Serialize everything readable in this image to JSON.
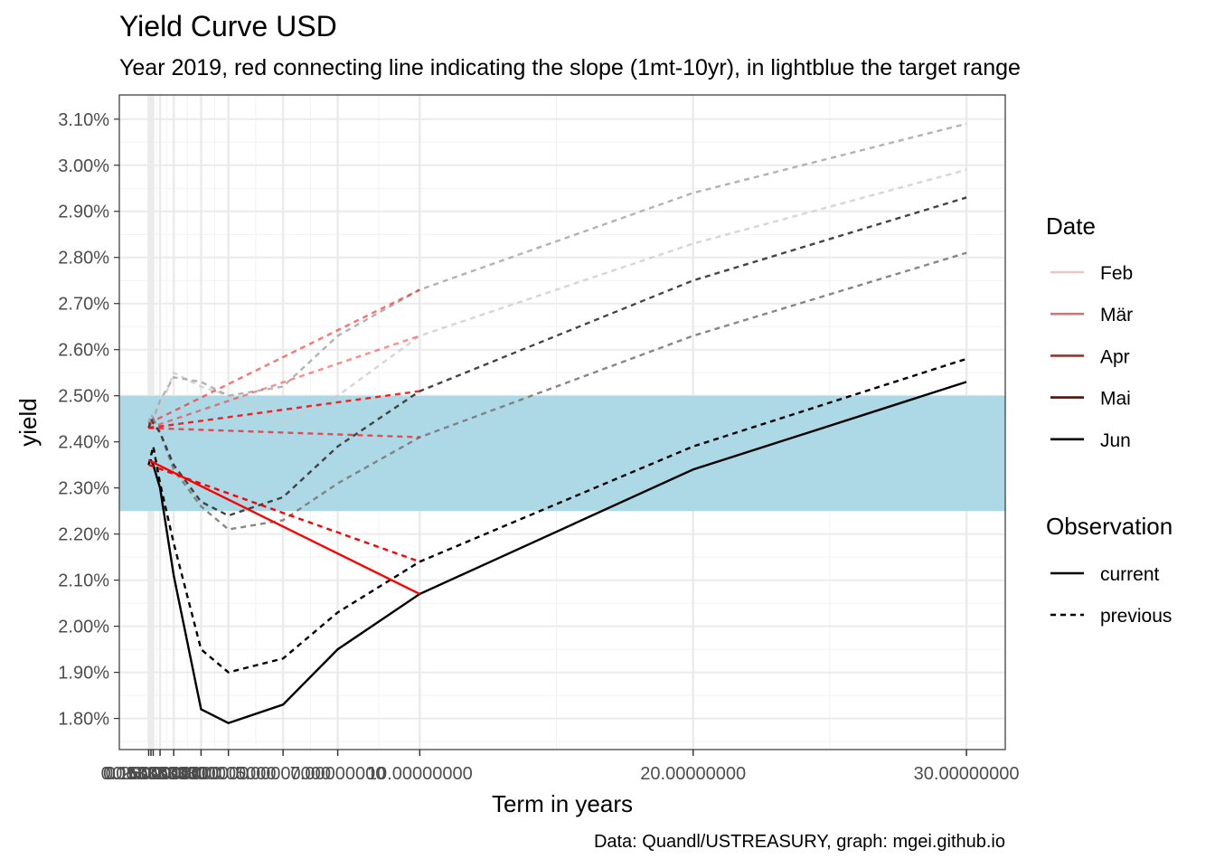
{
  "chart_data": {
    "type": "line",
    "title": "Yield Curve USD",
    "subtitle": "Year 2019, red connecting line indicating the slope (1mt-10yr), in lightblue the target range",
    "xlabel": "Term in years",
    "ylabel": "yield",
    "caption": "Data: Quandl/USTREASURY, graph: mgei.github.io",
    "xlim": [
      -0.99,
      31.42
    ],
    "ylim": [
      1.7325,
      3.1525
    ],
    "y_ticks": [
      1.8,
      1.9,
      2.0,
      2.1,
      2.2,
      2.3,
      2.4,
      2.5,
      2.6,
      2.7,
      2.8,
      2.9,
      3.0,
      3.1
    ],
    "y_tick_labels": [
      "1.80%",
      "1.90%",
      "2.00%",
      "2.10%",
      "2.20%",
      "2.30%",
      "2.40%",
      "2.50%",
      "2.60%",
      "2.70%",
      "2.80%",
      "2.90%",
      "3.00%",
      "3.10%"
    ],
    "x_ticks": [
      0.08333333,
      0.16666667,
      0.25,
      0.5,
      1,
      2,
      3,
      5,
      7,
      10,
      20,
      30
    ],
    "x_tick_labels": [
      "0.08333333",
      "0.16666667",
      "0.25000000",
      "0.50000000",
      "1.00000000",
      "2.00000000",
      "3.00000000",
      "5.00000000",
      "7.00000000",
      "10.00000000",
      "20.00000000",
      "30.00000000"
    ],
    "grid": true,
    "target_range": {
      "low": 2.25,
      "high": 2.5,
      "color": "#add8e6"
    },
    "slope_line_color": "#ff0000",
    "legend_position": "right",
    "legend": {
      "date_title": "Date",
      "date_entries": [
        {
          "label": "Feb",
          "color": "#e8c7c3"
        },
        {
          "label": "Mär",
          "color": "#b97f78"
        },
        {
          "label": "Apr",
          "color": "#8a3a30"
        },
        {
          "label": "Mai",
          "color": "#4a130d"
        },
        {
          "label": "Jun",
          "color": "#000000"
        }
      ],
      "observation_title": "Observation",
      "observation_entries": [
        {
          "label": "current",
          "dash": "solid"
        },
        {
          "label": "previous",
          "dash": "dashed"
        }
      ]
    },
    "series": [
      {
        "name": "Feb",
        "observation": "previous",
        "color": "#cccccc",
        "opacity": 0.8,
        "x": [
          0.08333333,
          0.16666667,
          0.25,
          0.5,
          1,
          2,
          3,
          5,
          7,
          10,
          20,
          30
        ],
        "y": [
          2.43,
          2.44,
          2.45,
          2.47,
          2.55,
          2.52,
          2.5,
          2.44,
          2.5,
          2.63,
          2.83,
          2.99
        ]
      },
      {
        "name": "Mär",
        "observation": "previous",
        "color": "#a6a6a6",
        "opacity": 0.85,
        "x": [
          0.08333333,
          0.16666667,
          0.25,
          0.5,
          1,
          2,
          3,
          5,
          7,
          10,
          20,
          30
        ],
        "y": [
          2.44,
          2.46,
          2.45,
          2.49,
          2.54,
          2.53,
          2.5,
          2.52,
          2.63,
          2.73,
          2.94,
          3.09
        ]
      },
      {
        "name": "Apr",
        "observation": "previous",
        "color": "#7a7a7a",
        "opacity": 0.9,
        "x": [
          0.08333333,
          0.16666667,
          0.25,
          0.5,
          1,
          2,
          3,
          5,
          7,
          10,
          20,
          30
        ],
        "y": [
          2.43,
          2.44,
          2.45,
          2.42,
          2.34,
          2.26,
          2.21,
          2.23,
          2.31,
          2.41,
          2.63,
          2.81
        ]
      },
      {
        "name": "Mai",
        "observation": "previous",
        "color": "#3a3a3a",
        "opacity": 0.95,
        "x": [
          0.08333333,
          0.16666667,
          0.25,
          0.5,
          1,
          2,
          3,
          5,
          7,
          10,
          20,
          30
        ],
        "y": [
          2.43,
          2.45,
          2.44,
          2.42,
          2.35,
          2.27,
          2.24,
          2.28,
          2.39,
          2.51,
          2.75,
          2.93
        ]
      },
      {
        "name": "Jun",
        "observation": "previous",
        "color": "#000000",
        "opacity": 1,
        "x": [
          0.08333333,
          0.16666667,
          0.25,
          0.5,
          1,
          2,
          3,
          5,
          7,
          10,
          20,
          30
        ],
        "y": [
          2.35,
          2.37,
          2.39,
          2.31,
          2.18,
          1.95,
          1.9,
          1.93,
          2.03,
          2.14,
          2.39,
          2.58
        ]
      },
      {
        "name": "Jun",
        "observation": "current",
        "color": "#000000",
        "opacity": 1,
        "x": [
          0.08333333,
          0.16666667,
          0.25,
          0.5,
          1,
          2,
          3,
          5,
          7,
          10,
          20,
          30
        ],
        "y": [
          2.36,
          2.36,
          2.35,
          2.3,
          2.11,
          1.82,
          1.79,
          1.83,
          1.95,
          2.07,
          2.34,
          2.53
        ]
      }
    ],
    "slope_lines": [
      {
        "name": "Feb slope",
        "dash": "dashed",
        "opacity": 0.45,
        "x": [
          0.08333333,
          10
        ],
        "y": [
          2.43,
          2.63
        ]
      },
      {
        "name": "Mär slope",
        "dash": "dashed",
        "opacity": 0.55,
        "x": [
          0.08333333,
          10
        ],
        "y": [
          2.44,
          2.73
        ]
      },
      {
        "name": "Apr slope",
        "dash": "dashed",
        "opacity": 0.65,
        "x": [
          0.08333333,
          10
        ],
        "y": [
          2.43,
          2.41
        ]
      },
      {
        "name": "Mai slope",
        "dash": "dashed",
        "opacity": 0.85,
        "x": [
          0.08333333,
          10
        ],
        "y": [
          2.43,
          2.51
        ]
      },
      {
        "name": "Jun prev slope",
        "dash": "dashed",
        "opacity": 1,
        "x": [
          0.08333333,
          10
        ],
        "y": [
          2.35,
          2.14
        ]
      },
      {
        "name": "Jun slope",
        "dash": "solid",
        "opacity": 1,
        "x": [
          0.08333333,
          10
        ],
        "y": [
          2.36,
          2.07
        ]
      }
    ]
  }
}
